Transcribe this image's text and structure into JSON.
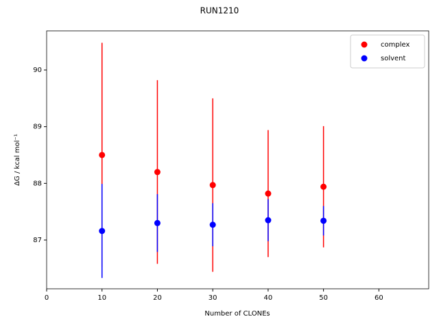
{
  "chart_data": {
    "type": "scatter",
    "title": "RUN1210",
    "x_label": "Number of CLONEs",
    "y_label": "ΔG / kcal mol⁻¹",
    "x": [
      10,
      20,
      30,
      40,
      50
    ],
    "series": [
      {
        "name": "complex",
        "color": "#ff0000",
        "values": [
          88.5,
          88.2,
          87.97,
          87.82,
          87.94
        ],
        "errors": [
          1.98,
          1.62,
          1.53,
          1.12,
          1.07
        ]
      },
      {
        "name": "solvent",
        "color": "#0000ff",
        "values": [
          87.16,
          87.3,
          87.27,
          87.35,
          87.34
        ],
        "errors": [
          0.83,
          0.51,
          0.38,
          0.37,
          0.26
        ]
      }
    ],
    "xlim": [
      0,
      69
    ],
    "ylim": [
      86.14,
      90.69
    ],
    "xticks": [
      0,
      10,
      20,
      30,
      40,
      50,
      60
    ],
    "yticks": [
      87,
      88,
      89,
      90
    ],
    "legend": "upper right"
  }
}
